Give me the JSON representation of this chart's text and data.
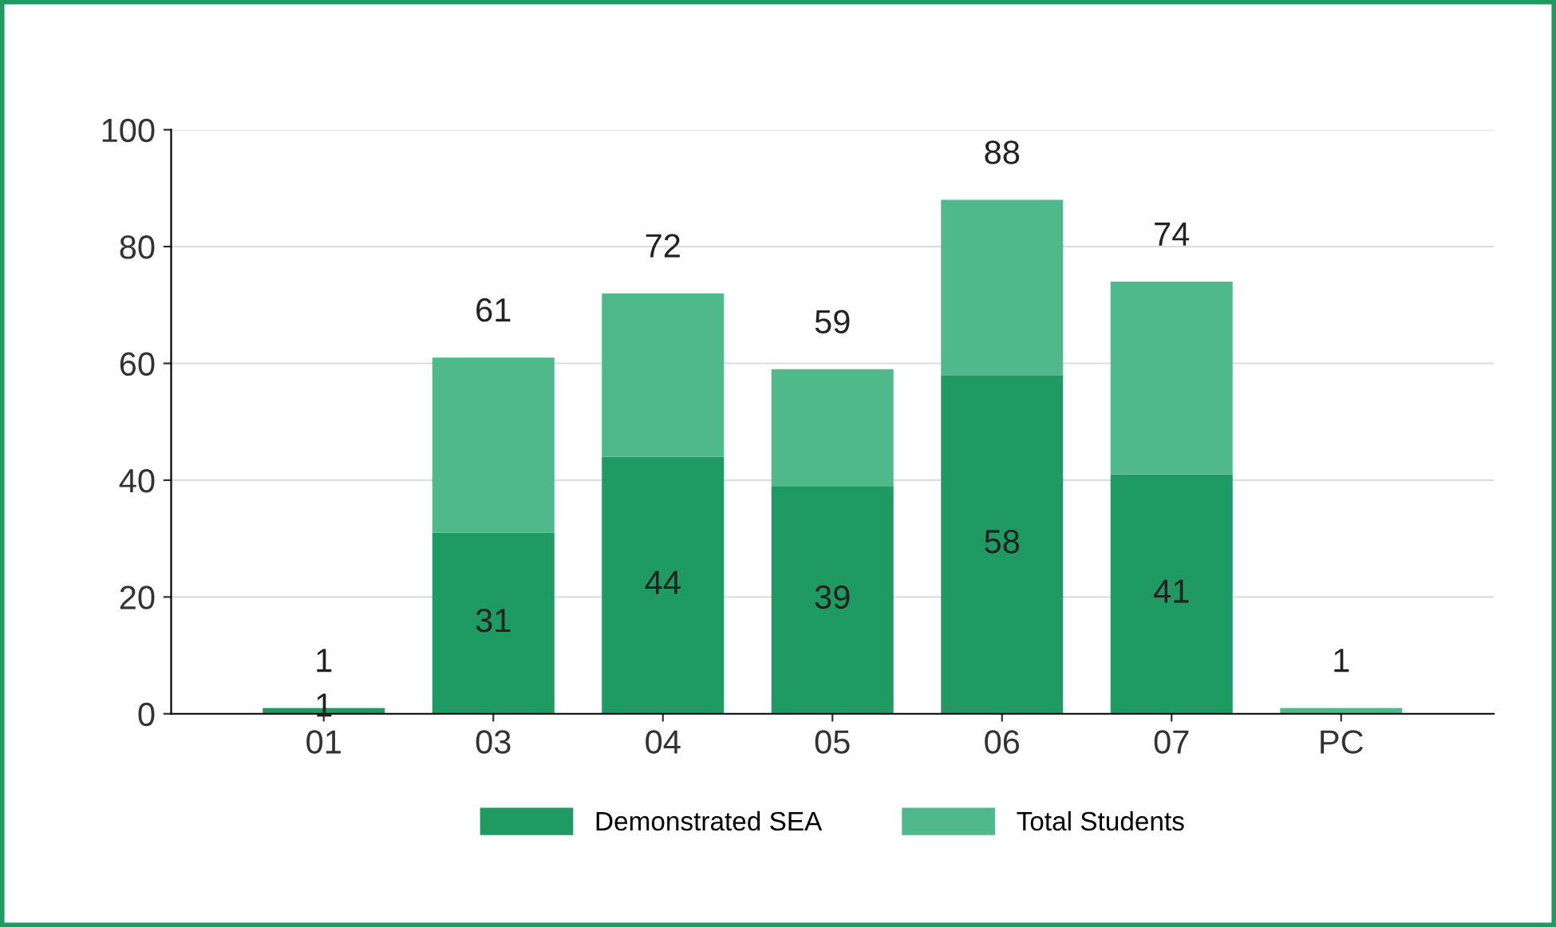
{
  "chart_data": {
    "type": "bar",
    "stacked": true,
    "categories": [
      "01",
      "03",
      "04",
      "05",
      "06",
      "07",
      "PC"
    ],
    "series": [
      {
        "name": "Demonstrated SEA",
        "color": "#1f9a62",
        "values": [
          1,
          31,
          44,
          39,
          58,
          41,
          0
        ],
        "value_labels": [
          "1",
          "31",
          "44",
          "39",
          "58",
          "41",
          null
        ]
      },
      {
        "name": "Total Students",
        "color": "#4fb98c",
        "values": [
          0,
          30,
          28,
          20,
          30,
          33,
          1
        ]
      }
    ],
    "totals": [
      "1",
      "61",
      "72",
      "59",
      "88",
      "74",
      "1"
    ],
    "ylim": [
      0,
      100
    ],
    "yticks": [
      0,
      20,
      40,
      60,
      80,
      100
    ],
    "grid": "y",
    "legend": "bottom"
  }
}
